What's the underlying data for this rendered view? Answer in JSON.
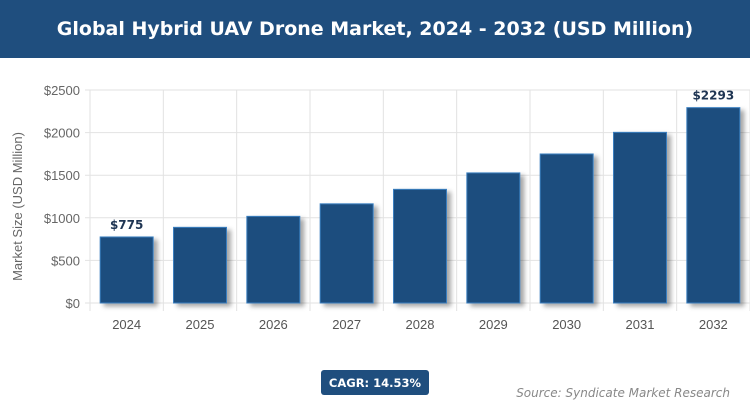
{
  "chart_data": {
    "type": "bar",
    "title": "Global Hybrid UAV Drone Market, 2024 - 2032 (USD Million)",
    "ylabel": "Market Size (USD Million)",
    "xlabel": "",
    "categories": [
      "2024",
      "2025",
      "2026",
      "2027",
      "2028",
      "2029",
      "2030",
      "2031",
      "2032"
    ],
    "values": [
      775,
      888,
      1017,
      1164,
      1334,
      1527,
      1749,
      2003,
      2293
    ],
    "data_labels": {
      "0": "$775",
      "8": "$2293"
    },
    "ylim": [
      0,
      2500
    ],
    "yticks": [
      0,
      500,
      1000,
      1500,
      2000,
      2500
    ],
    "ytick_labels": [
      "$0",
      "$500",
      "$1000",
      "$1500",
      "$2000",
      "$2500"
    ],
    "grid": true,
    "bar_color": "#1f4e7e",
    "bar_edge_color": "#3a7fc0"
  },
  "cagr_label": "CAGR: 14.53%",
  "source": "Source: Syndicate Market Research"
}
